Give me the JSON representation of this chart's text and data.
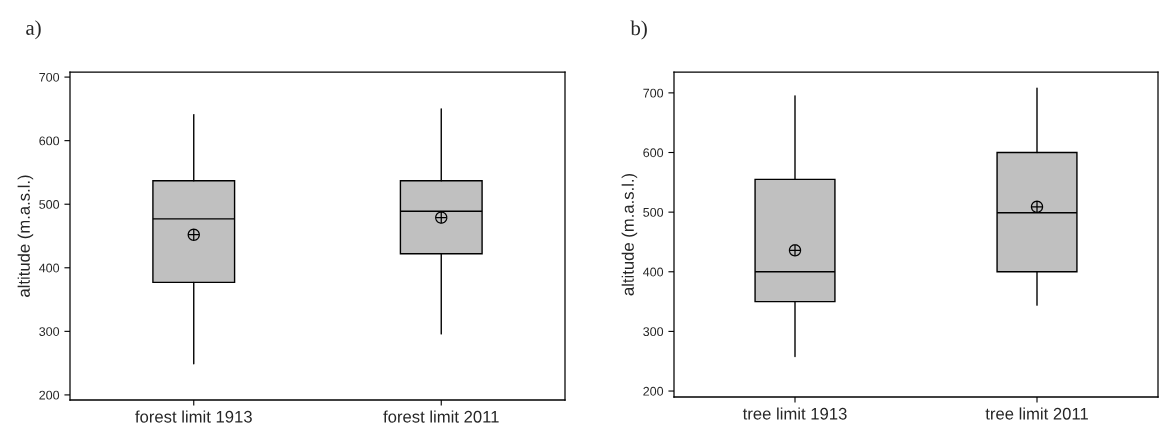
{
  "chart_data": [
    {
      "type": "box",
      "title": "a)",
      "ylabel": "altitude (m.a.s.l.)",
      "categories": [
        "forest limit 1913",
        "forest limit 2011"
      ],
      "color": "#c0c0c0",
      "ylim": [
        192,
        708
      ],
      "yticks": [
        200,
        300,
        400,
        500,
        600,
        700
      ],
      "grid": false,
      "legend": false,
      "boxes": [
        {
          "low": 249,
          "q1": 377,
          "median": 477,
          "q3": 537,
          "high": 641,
          "mean": 452
        },
        {
          "low": 296,
          "q1": 422,
          "median": 489,
          "q3": 537,
          "high": 650,
          "mean": 479
        }
      ]
    },
    {
      "type": "box",
      "title": "b)",
      "ylabel": "altitude (m.a.s.l.)",
      "categories": [
        "tree limit 1913",
        "tree limit 2011"
      ],
      "color": "#c0c0c0",
      "ylim": [
        190,
        735
      ],
      "yticks": [
        200,
        300,
        400,
        500,
        600,
        700
      ],
      "grid": false,
      "legend": false,
      "boxes": [
        {
          "low": 258,
          "q1": 350,
          "median": 400,
          "q3": 555,
          "high": 695,
          "mean": 436
        },
        {
          "low": 344,
          "q1": 400,
          "median": 499,
          "q3": 600,
          "high": 708,
          "mean": 509
        }
      ]
    }
  ]
}
